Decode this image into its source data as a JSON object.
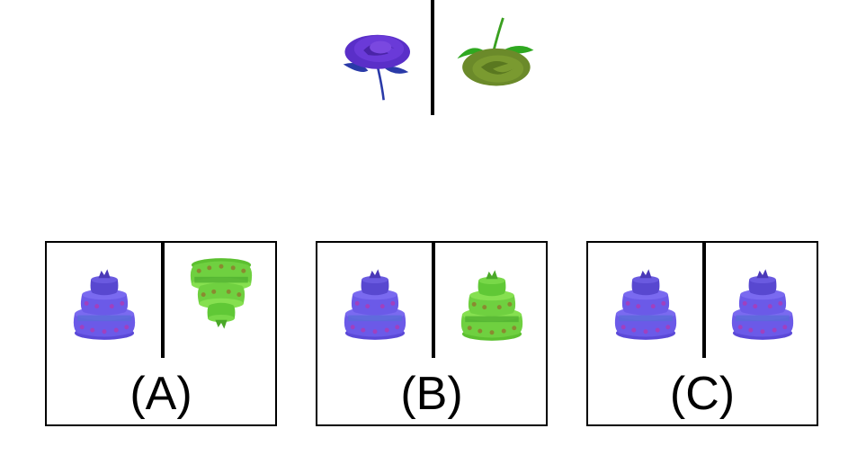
{
  "prompt": {
    "left_image": "purple-rose",
    "right_image": "green-rose-inverted"
  },
  "options": [
    {
      "label": "(A)",
      "left_image": "purple-cake",
      "right_image": "green-cake-inverted"
    },
    {
      "label": "(B)",
      "left_image": "purple-cake",
      "right_image": "green-cake"
    },
    {
      "label": "(C)",
      "left_image": "purple-cake",
      "right_image": "purple-cake"
    }
  ],
  "colors": {
    "purple": "#5a3fd0",
    "purple_dark": "#3a1f9a",
    "blue_stem": "#2a3aa8",
    "green": "#7fd84a",
    "olive": "#6b8a2a",
    "cake_purple": "#6b5ae8"
  }
}
